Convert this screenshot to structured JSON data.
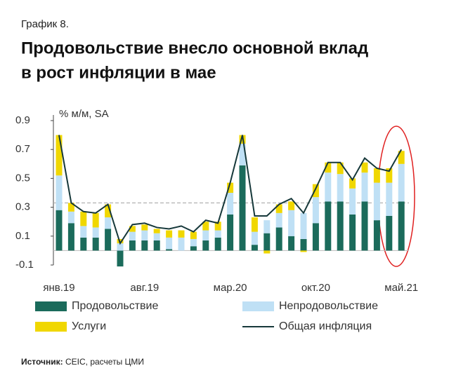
{
  "chart_data": {
    "type": "stacked_bar_line",
    "label": "График 8.",
    "title": [
      "Продовольствие внесло основной вклад",
      "в рост инфляции в мае"
    ],
    "y_axis_label": "% м/м, SA",
    "categories": [
      "янв.19",
      null,
      null,
      null,
      null,
      null,
      null,
      "авг.19",
      null,
      null,
      null,
      null,
      null,
      null,
      "мар.20",
      null,
      null,
      null,
      null,
      null,
      null,
      "окт.20",
      null,
      null,
      null,
      null,
      null,
      null,
      "май.21"
    ],
    "series": [
      {
        "name": "Продовольствие",
        "color": "#1b6b5b",
        "kind": "bar",
        "values": [
          0.28,
          0.19,
          0.09,
          0.09,
          0.15,
          -0.11,
          0.07,
          0.07,
          0.07,
          0.01,
          0.0,
          0.03,
          0.07,
          0.09,
          0.25,
          0.59,
          0.04,
          0.12,
          0.16,
          0.1,
          0.08,
          0.19,
          0.34,
          0.34,
          0.25,
          0.34,
          0.21,
          0.24,
          0.34
        ]
      },
      {
        "name": "Непродовольствие",
        "color": "#bfe0f5",
        "kind": "bar",
        "values": [
          0.24,
          0.08,
          0.08,
          0.07,
          0.08,
          0.05,
          0.06,
          0.07,
          0.05,
          0.08,
          0.09,
          0.05,
          0.07,
          0.05,
          0.15,
          0.15,
          0.09,
          0.09,
          0.1,
          0.18,
          0.18,
          0.18,
          0.2,
          0.19,
          0.18,
          0.2,
          0.26,
          0.23,
          0.26
        ]
      },
      {
        "name": "Услуги",
        "color": "#f0d700",
        "kind": "bar",
        "values": [
          0.28,
          0.06,
          0.1,
          0.1,
          0.09,
          0.03,
          0.04,
          0.04,
          0.03,
          0.05,
          0.05,
          0.05,
          0.06,
          0.06,
          0.07,
          0.06,
          0.1,
          -0.02,
          0.06,
          0.06,
          -0.01,
          0.09,
          0.07,
          0.08,
          0.07,
          0.07,
          0.1,
          0.1,
          0.09
        ]
      },
      {
        "name": "Общая инфляция",
        "color": "#16383a",
        "kind": "line",
        "values": [
          0.8,
          0.33,
          0.27,
          0.26,
          0.32,
          0.05,
          0.18,
          0.19,
          0.16,
          0.15,
          0.17,
          0.13,
          0.21,
          0.19,
          0.47,
          0.8,
          0.24,
          0.24,
          0.32,
          0.36,
          0.26,
          0.43,
          0.61,
          0.61,
          0.49,
          0.64,
          0.57,
          0.55,
          0.7
        ]
      }
    ],
    "reference_line": 0.33,
    "ylim": [
      -0.1,
      0.9
    ],
    "yticks": [
      -0.1,
      0.1,
      0.3,
      0.5,
      0.7,
      0.9
    ],
    "source_label": "Источник:",
    "source_text": "CEIC, расчеты ЦМИ"
  }
}
